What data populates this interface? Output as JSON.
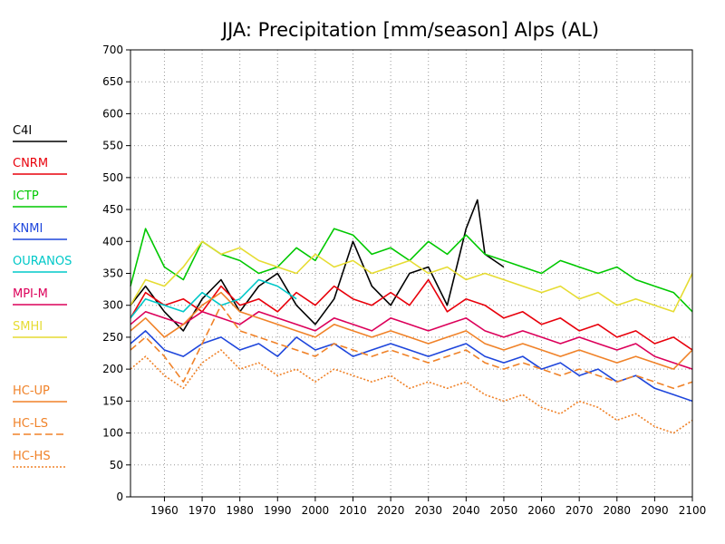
{
  "chart_data": {
    "type": "line",
    "title": "JJA: Precipitation [mm/season] Alps (AL)",
    "xlabel": "",
    "ylabel": "",
    "xlim": [
      1951,
      2100
    ],
    "ylim": [
      0,
      700
    ],
    "x_ticks": [
      "1960",
      "1970",
      "1980",
      "1990",
      "2000",
      "2010",
      "2020",
      "2030",
      "2040",
      "2050",
      "2060",
      "2070",
      "2080",
      "2090",
      "2100"
    ],
    "y_ticks": [
      "0",
      "50",
      "100",
      "150",
      "200",
      "250",
      "300",
      "350",
      "400",
      "450",
      "500",
      "550",
      "600",
      "650",
      "700"
    ],
    "grid": true,
    "legend_position": "left",
    "series": [
      {
        "name": "C4I",
        "color": "#000000",
        "dash": "solid",
        "x": [
          1951,
          1955,
          1960,
          1965,
          1970,
          1975,
          1980,
          1985,
          1990,
          1995,
          2000,
          2005,
          2010,
          2015,
          2020,
          2025,
          2030,
          2035,
          2040,
          2043,
          2045,
          2050
        ],
        "values": [
          300,
          330,
          290,
          260,
          310,
          340,
          290,
          330,
          350,
          300,
          270,
          310,
          400,
          330,
          300,
          350,
          360,
          300,
          420,
          465,
          380,
          360
        ]
      },
      {
        "name": "CNRM",
        "color": "#e8000b",
        "dash": "solid",
        "x": [
          1951,
          1955,
          1960,
          1965,
          1970,
          1975,
          1980,
          1985,
          1990,
          1995,
          2000,
          2005,
          2010,
          2015,
          2020,
          2025,
          2030,
          2035,
          2040,
          2045,
          2050,
          2055,
          2060,
          2065,
          2070,
          2075,
          2080,
          2085,
          2090,
          2095,
          2100
        ],
        "values": [
          280,
          320,
          300,
          310,
          290,
          330,
          300,
          310,
          290,
          320,
          300,
          330,
          310,
          300,
          320,
          300,
          340,
          290,
          310,
          300,
          280,
          290,
          270,
          280,
          260,
          270,
          250,
          260,
          240,
          250,
          230
        ]
      },
      {
        "name": "ICTP",
        "color": "#00c800",
        "dash": "solid",
        "x": [
          1951,
          1955,
          1960,
          1965,
          1970,
          1975,
          1980,
          1985,
          1990,
          1995,
          2000,
          2005,
          2010,
          2015,
          2020,
          2025,
          2030,
          2035,
          2040,
          2045,
          2050,
          2055,
          2060,
          2065,
          2070,
          2075,
          2080,
          2085,
          2090,
          2095,
          2100
        ],
        "values": [
          330,
          420,
          360,
          340,
          400,
          380,
          370,
          350,
          360,
          390,
          370,
          420,
          410,
          380,
          390,
          370,
          400,
          380,
          410,
          380,
          370,
          360,
          350,
          370,
          360,
          350,
          360,
          340,
          330,
          320,
          290
        ]
      },
      {
        "name": "KNMI",
        "color": "#1e46dc",
        "dash": "solid",
        "x": [
          1951,
          1955,
          1960,
          1965,
          1970,
          1975,
          1980,
          1985,
          1990,
          1995,
          2000,
          2005,
          2010,
          2015,
          2020,
          2025,
          2030,
          2035,
          2040,
          2045,
          2050,
          2055,
          2060,
          2065,
          2070,
          2075,
          2080,
          2085,
          2090,
          2095,
          2100
        ],
        "values": [
          240,
          260,
          230,
          220,
          240,
          250,
          230,
          240,
          220,
          250,
          230,
          240,
          220,
          230,
          240,
          230,
          220,
          230,
          240,
          220,
          210,
          220,
          200,
          210,
          190,
          200,
          180,
          190,
          170,
          160,
          150
        ]
      },
      {
        "name": "OURANOS",
        "color": "#00c8c8",
        "dash": "solid",
        "x": [
          1951,
          1955,
          1960,
          1965,
          1970,
          1975,
          1980,
          1985,
          1990,
          1995
        ],
        "values": [
          280,
          310,
          300,
          290,
          320,
          300,
          310,
          340,
          330,
          310
        ]
      },
      {
        "name": "MPI-M",
        "color": "#dc005a",
        "dash": "solid",
        "x": [
          1951,
          1955,
          1960,
          1965,
          1970,
          1975,
          1980,
          1985,
          1990,
          1995,
          2000,
          2005,
          2010,
          2015,
          2020,
          2025,
          2030,
          2035,
          2040,
          2045,
          2050,
          2055,
          2060,
          2065,
          2070,
          2075,
          2080,
          2085,
          2090,
          2095,
          2100
        ],
        "values": [
          270,
          290,
          280,
          270,
          290,
          280,
          270,
          290,
          280,
          270,
          260,
          280,
          270,
          260,
          280,
          270,
          260,
          270,
          280,
          260,
          250,
          260,
          250,
          240,
          250,
          240,
          230,
          240,
          220,
          210,
          200
        ]
      },
      {
        "name": "SMHI",
        "color": "#e6dc32",
        "dash": "solid",
        "x": [
          1951,
          1955,
          1960,
          1965,
          1970,
          1975,
          1980,
          1985,
          1990,
          1995,
          2000,
          2005,
          2010,
          2015,
          2020,
          2025,
          2030,
          2035,
          2040,
          2045,
          2050,
          2055,
          2060,
          2065,
          2070,
          2075,
          2080,
          2085,
          2090,
          2095,
          2100
        ],
        "values": [
          300,
          340,
          330,
          360,
          400,
          380,
          390,
          370,
          360,
          350,
          380,
          360,
          370,
          350,
          360,
          370,
          350,
          360,
          340,
          350,
          340,
          330,
          320,
          330,
          310,
          320,
          300,
          310,
          300,
          290,
          350
        ]
      },
      {
        "name": "HC-UP",
        "color": "#f08228",
        "dash": "solid",
        "x": [
          1951,
          1955,
          1960,
          1965,
          1970,
          1975,
          1980,
          1985,
          1990,
          1995,
          2000,
          2005,
          2010,
          2015,
          2020,
          2025,
          2030,
          2035,
          2040,
          2045,
          2050,
          2055,
          2060,
          2065,
          2070,
          2075,
          2080,
          2085,
          2090,
          2095,
          2100
        ],
        "values": [
          260,
          280,
          250,
          270,
          300,
          320,
          290,
          280,
          270,
          260,
          250,
          270,
          260,
          250,
          260,
          250,
          240,
          250,
          260,
          240,
          230,
          240,
          230,
          220,
          230,
          220,
          210,
          220,
          210,
          200,
          230
        ]
      },
      {
        "name": "HC-LS",
        "color": "#f08228",
        "dash": "dashed",
        "x": [
          1951,
          1955,
          1960,
          1965,
          1970,
          1975,
          1980,
          1985,
          1990,
          1995,
          2000,
          2005,
          2010,
          2015,
          2020,
          2025,
          2030,
          2035,
          2040,
          2045,
          2050,
          2055,
          2060,
          2065,
          2070,
          2075,
          2080,
          2085,
          2090,
          2095,
          2100
        ],
        "values": [
          230,
          250,
          220,
          180,
          240,
          300,
          260,
          250,
          240,
          230,
          220,
          240,
          230,
          220,
          230,
          220,
          210,
          220,
          230,
          210,
          200,
          210,
          200,
          190,
          200,
          190,
          180,
          190,
          180,
          170,
          180
        ]
      },
      {
        "name": "HC-HS",
        "color": "#f08228",
        "dash": "dotted",
        "x": [
          1951,
          1955,
          1960,
          1965,
          1970,
          1975,
          1980,
          1985,
          1990,
          1995,
          2000,
          2005,
          2010,
          2015,
          2020,
          2025,
          2030,
          2035,
          2040,
          2045,
          2050,
          2055,
          2060,
          2065,
          2070,
          2075,
          2080,
          2085,
          2090,
          2095,
          2100
        ],
        "values": [
          200,
          220,
          190,
          170,
          210,
          230,
          200,
          210,
          190,
          200,
          180,
          200,
          190,
          180,
          190,
          170,
          180,
          170,
          180,
          160,
          150,
          160,
          140,
          130,
          150,
          140,
          120,
          130,
          110,
          100,
          120
        ]
      }
    ]
  }
}
